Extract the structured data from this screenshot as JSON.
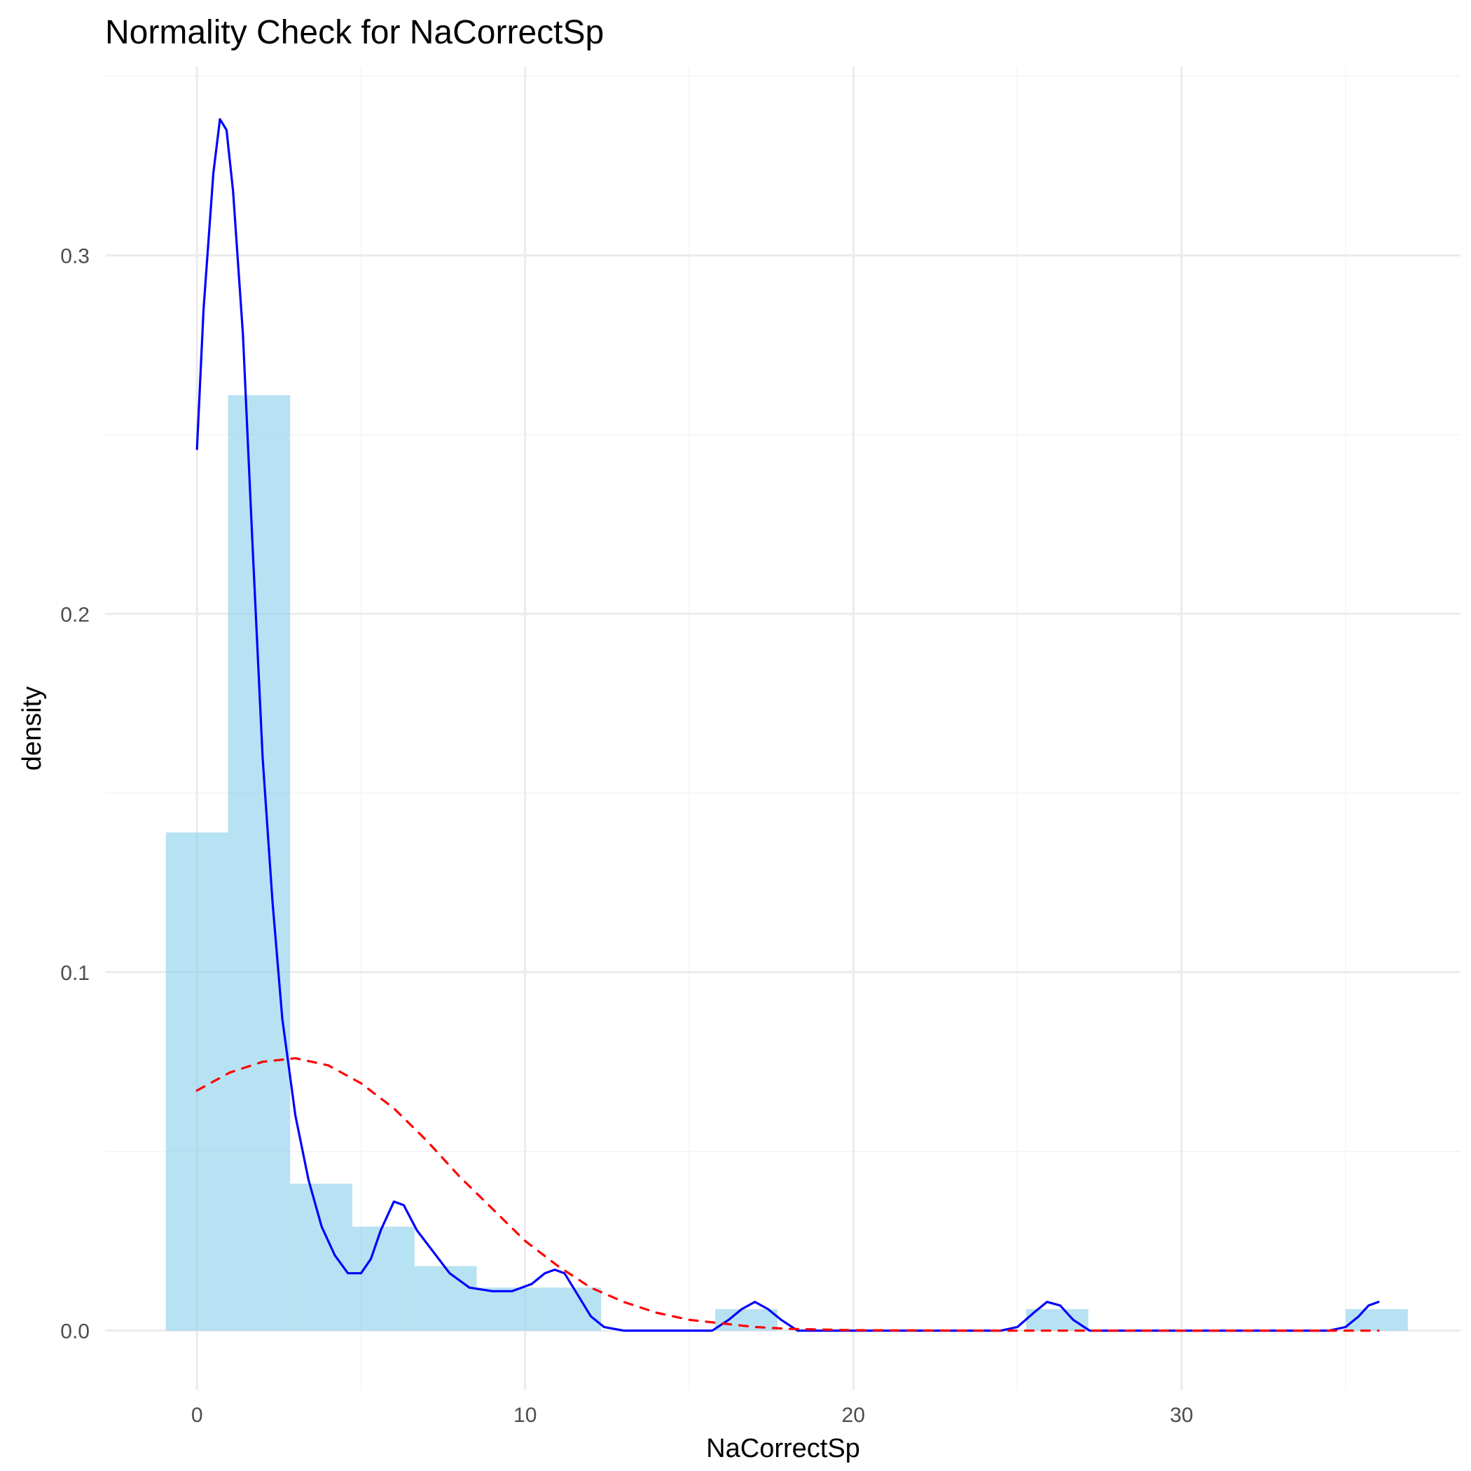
{
  "chart_data": {
    "type": "histogram",
    "title": "Normality Check for NaCorrectSp",
    "xlabel": "NaCorrectSp",
    "ylabel": "density",
    "xlim": [
      -2.8,
      38.5
    ],
    "ylim": [
      -0.0167,
      0.3527
    ],
    "x_ticks": [
      0,
      10,
      20,
      30
    ],
    "x_tick_labels": [
      "0",
      "10",
      "20",
      "30"
    ],
    "y_ticks": [
      0.0,
      0.1,
      0.2,
      0.3
    ],
    "y_tick_labels": [
      "0.0",
      "0.1",
      "0.2",
      "0.3"
    ],
    "grid": true,
    "colors": {
      "bars": "#87ceeb",
      "density_line": "#0000ff",
      "normal_line": "#ff0000",
      "grid_major": "#ebebeb",
      "grid_minor": "#f3f3f3"
    },
    "histogram": {
      "bin_width": 1.895,
      "bins": [
        {
          "x0": -0.95,
          "x1": 0.945,
          "density": 0.139
        },
        {
          "x0": 0.945,
          "x1": 2.84,
          "density": 0.261
        },
        {
          "x0": 2.84,
          "x1": 4.735,
          "density": 0.041
        },
        {
          "x0": 4.735,
          "x1": 6.63,
          "density": 0.029
        },
        {
          "x0": 6.63,
          "x1": 8.525,
          "density": 0.018
        },
        {
          "x0": 8.525,
          "x1": 10.42,
          "density": 0.012
        },
        {
          "x0": 10.42,
          "x1": 12.315,
          "density": 0.012
        },
        {
          "x0": 15.79,
          "x1": 17.685,
          "density": 0.006
        },
        {
          "x0": 25.265,
          "x1": 27.16,
          "density": 0.006
        },
        {
          "x0": 35.0,
          "x1": 36.895,
          "density": 0.006
        }
      ]
    },
    "series": [
      {
        "style": "solid",
        "points": [
          [
            0,
            0.246
          ],
          [
            0.2,
            0.285
          ],
          [
            0.5,
            0.323
          ],
          [
            0.7,
            0.338
          ],
          [
            0.9,
            0.335
          ],
          [
            1.1,
            0.318
          ],
          [
            1.4,
            0.278
          ],
          [
            1.7,
            0.218
          ],
          [
            2.0,
            0.16
          ],
          [
            2.3,
            0.12
          ],
          [
            2.6,
            0.087
          ],
          [
            3.0,
            0.06
          ],
          [
            3.4,
            0.042
          ],
          [
            3.8,
            0.029
          ],
          [
            4.2,
            0.021
          ],
          [
            4.6,
            0.016
          ],
          [
            5.0,
            0.016
          ],
          [
            5.3,
            0.02
          ],
          [
            5.6,
            0.028
          ],
          [
            6.0,
            0.036
          ],
          [
            6.3,
            0.035
          ],
          [
            6.7,
            0.028
          ],
          [
            7.2,
            0.022
          ],
          [
            7.7,
            0.016
          ],
          [
            8.3,
            0.012
          ],
          [
            9.0,
            0.011
          ],
          [
            9.6,
            0.011
          ],
          [
            10.2,
            0.013
          ],
          [
            10.6,
            0.016
          ],
          [
            10.9,
            0.017
          ],
          [
            11.2,
            0.016
          ],
          [
            11.6,
            0.01
          ],
          [
            12.0,
            0.004
          ],
          [
            12.4,
            0.001
          ],
          [
            13.0,
            0.0
          ],
          [
            15.2,
            0.0
          ],
          [
            15.7,
            0.0
          ],
          [
            16.2,
            0.003
          ],
          [
            16.6,
            0.006
          ],
          [
            17.0,
            0.008
          ],
          [
            17.4,
            0.006
          ],
          [
            17.8,
            0.003
          ],
          [
            18.3,
            0.0
          ],
          [
            24.5,
            0.0
          ],
          [
            25.0,
            0.001
          ],
          [
            25.5,
            0.005
          ],
          [
            25.9,
            0.008
          ],
          [
            26.3,
            0.007
          ],
          [
            26.7,
            0.003
          ],
          [
            27.2,
            0.0
          ],
          [
            34.5,
            0.0
          ],
          [
            35.0,
            0.001
          ],
          [
            35.4,
            0.004
          ],
          [
            35.7,
            0.007
          ],
          [
            36.0,
            0.008
          ]
        ]
      },
      {
        "style": "dashed",
        "points": [
          [
            0,
            0.067
          ],
          [
            1.0,
            0.072
          ],
          [
            2.0,
            0.075
          ],
          [
            3.0,
            0.076
          ],
          [
            4.0,
            0.074
          ],
          [
            5.0,
            0.069
          ],
          [
            6.0,
            0.062
          ],
          [
            7.0,
            0.053
          ],
          [
            8.0,
            0.043
          ],
          [
            9.0,
            0.034
          ],
          [
            10.0,
            0.025
          ],
          [
            11.0,
            0.018
          ],
          [
            12.0,
            0.012
          ],
          [
            13.0,
            0.008
          ],
          [
            14.0,
            0.005
          ],
          [
            15.0,
            0.003
          ],
          [
            16.0,
            0.002
          ],
          [
            17.0,
            0.001
          ],
          [
            18.0,
            0.0005
          ],
          [
            20.0,
            0.0001
          ],
          [
            24.0,
            0.0
          ],
          [
            30.0,
            0.0
          ],
          [
            36.0,
            0.0
          ]
        ]
      }
    ]
  }
}
